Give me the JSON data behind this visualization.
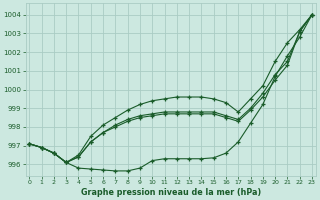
{
  "x": [
    0,
    1,
    2,
    3,
    4,
    5,
    6,
    7,
    8,
    9,
    10,
    11,
    12,
    13,
    14,
    15,
    16,
    17,
    18,
    19,
    20,
    21,
    22,
    23
  ],
  "line_top": [
    997.1,
    996.9,
    996.6,
    996.1,
    996.5,
    997.5,
    998.1,
    998.5,
    998.9,
    999.2,
    999.4,
    999.5,
    999.6,
    999.6,
    999.6,
    999.5,
    999.3,
    998.8,
    999.5,
    1000.2,
    1001.5,
    1002.5,
    1003.2,
    1004.0
  ],
  "line_mid1": [
    997.1,
    996.9,
    996.6,
    996.1,
    996.4,
    997.2,
    997.7,
    998.1,
    998.4,
    998.6,
    998.7,
    998.8,
    998.8,
    998.8,
    998.8,
    998.8,
    998.6,
    998.4,
    999.0,
    999.8,
    1000.8,
    1001.5,
    1003.1,
    1004.0
  ],
  "line_mid2": [
    997.1,
    996.9,
    996.6,
    996.1,
    996.4,
    997.2,
    997.7,
    998.0,
    998.3,
    998.5,
    998.6,
    998.7,
    998.7,
    998.7,
    998.7,
    998.7,
    998.5,
    998.3,
    998.9,
    999.6,
    1000.5,
    1001.3,
    1003.1,
    1004.0
  ],
  "line_bot": [
    997.1,
    996.9,
    996.6,
    996.1,
    995.8,
    995.75,
    995.7,
    995.65,
    995.65,
    995.8,
    996.2,
    996.3,
    996.3,
    996.3,
    996.3,
    996.35,
    996.6,
    997.2,
    998.2,
    999.2,
    1000.7,
    1001.8,
    1002.8,
    1004.0
  ],
  "bg_color": "#cce8e0",
  "grid_color": "#aaccc4",
  "line_color": "#1a5c2a",
  "ylabel_ticks": [
    996,
    997,
    998,
    999,
    1000,
    1001,
    1002,
    1003,
    1004
  ],
  "xlabel": "Graphe pression niveau de la mer (hPa)",
  "ylim": [
    995.4,
    1004.6
  ],
  "xlim": [
    -0.3,
    23.3
  ]
}
